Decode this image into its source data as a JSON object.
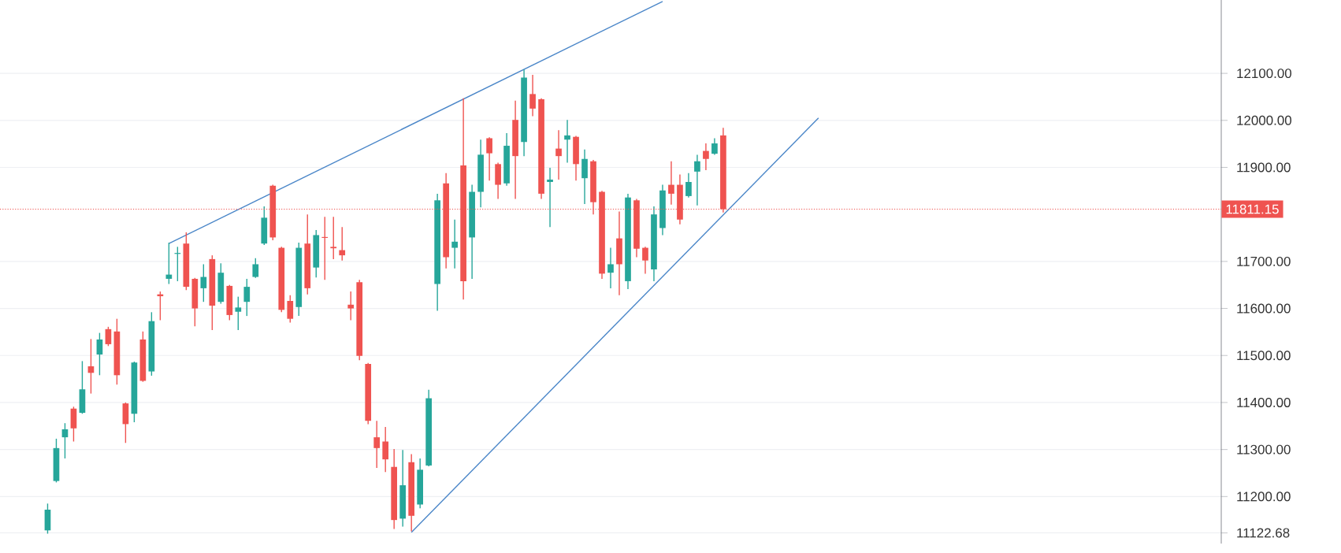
{
  "chart_data": {
    "type": "candlestick",
    "categories": [
      null,
      null,
      null,
      null,
      null,
      null,
      null,
      null,
      null,
      null,
      null,
      null,
      null,
      null,
      null,
      null,
      null,
      null,
      null,
      null,
      null,
      null,
      null,
      null,
      null,
      null,
      null,
      null,
      null,
      null,
      null,
      null,
      null,
      null,
      null,
      null,
      null,
      null,
      null,
      null,
      null,
      null,
      null,
      null,
      null,
      null,
      null,
      null,
      null,
      null,
      null,
      null,
      null,
      null,
      null,
      null,
      null,
      null,
      null,
      null,
      null,
      null,
      null,
      null,
      null,
      null,
      null,
      null,
      null,
      null,
      null,
      null,
      null,
      null,
      null,
      null,
      null,
      null,
      null,
      null,
      null,
      null,
      null,
      null,
      null,
      null,
      null,
      null,
      null,
      null,
      null,
      null,
      null,
      null,
      null,
      null,
      null,
      null,
      null,
      null,
      null,
      null,
      null,
      null,
      null,
      null,
      null,
      null,
      null,
      null,
      null,
      null,
      null,
      null,
      null,
      null,
      null,
      null,
      null,
      null,
      null,
      null,
      null,
      null,
      null,
      null,
      null,
      null,
      null,
      null,
      null,
      null,
      null,
      null,
      null,
      null,
      null,
      null,
      null,
      null,
      null
    ],
    "ohlc": [
      null,
      null,
      null,
      null,
      null,
      [
        11128,
        11185,
        11121,
        11172
      ],
      [
        11233,
        11323,
        11230,
        11303
      ],
      [
        11326,
        11356,
        11281,
        11343
      ],
      [
        11387,
        11391,
        11317,
        11345
      ],
      [
        11378,
        11488,
        11376,
        11428
      ],
      [
        11477,
        11535,
        11419,
        11463
      ],
      [
        11502,
        11548,
        11458,
        11534
      ],
      [
        11556,
        11561,
        11520,
        11524
      ],
      [
        11551,
        11578,
        11438,
        11458
      ],
      [
        11398,
        11400,
        11314,
        11354
      ],
      [
        11376,
        11487,
        11358,
        11485
      ],
      [
        11534,
        11551,
        11444,
        11446
      ],
      [
        11466,
        11592,
        11457,
        11573
      ],
      [
        11630,
        11636,
        11575,
        11626
      ],
      [
        11663,
        11740,
        11652,
        11672
      ],
      [
        11716,
        11731,
        11658,
        11718
      ],
      [
        11738,
        11762,
        11639,
        11646
      ],
      [
        11663,
        11665,
        11562,
        11600
      ],
      [
        11643,
        11694,
        11614,
        11667
      ],
      [
        11705,
        11713,
        11554,
        11606
      ],
      [
        11614,
        11696,
        11610,
        11676
      ],
      [
        11648,
        11650,
        11575,
        11586
      ],
      [
        11593,
        11625,
        11554,
        11602
      ],
      [
        11614,
        11663,
        11584,
        11646
      ],
      [
        11667,
        11707,
        11665,
        11694
      ],
      [
        11738,
        11817,
        11735,
        11793
      ],
      [
        11861,
        11863,
        11745,
        11751
      ],
      [
        11729,
        11731,
        11592,
        11597
      ],
      [
        11616,
        11628,
        11570,
        11578
      ],
      [
        11603,
        11740,
        11584,
        11729
      ],
      [
        11738,
        11800,
        11630,
        11643
      ],
      [
        11687,
        11767,
        11666,
        11756
      ],
      [
        11752,
        11795,
        11661,
        11750
      ],
      [
        11731,
        11795,
        11705,
        11728
      ],
      [
        11724,
        11773,
        11702,
        11713
      ],
      [
        11608,
        11636,
        11575,
        11600
      ],
      [
        11656,
        11661,
        11490,
        11499
      ],
      [
        11482,
        11484,
        11354,
        11361
      ],
      [
        11326,
        11361,
        11261,
        11303
      ],
      [
        11317,
        11348,
        11252,
        11279
      ],
      [
        11263,
        11301,
        11131,
        11150
      ],
      [
        11153,
        11299,
        11136,
        11224
      ],
      [
        11273,
        11290,
        11126,
        11159
      ],
      [
        11183,
        11281,
        11175,
        11257
      ],
      [
        11266,
        11427,
        11264,
        11409
      ],
      [
        11652,
        11844,
        11595,
        11830
      ],
      [
        11866,
        11888,
        11685,
        11709
      ],
      [
        11729,
        11789,
        11685,
        11742
      ],
      [
        11904,
        12047,
        11619,
        11658
      ],
      [
        11751,
        11863,
        11663,
        11848
      ],
      [
        11848,
        11959,
        11815,
        11927
      ],
      [
        11962,
        11964,
        11872,
        11930
      ],
      [
        11907,
        11910,
        11833,
        11863
      ],
      [
        11866,
        11973,
        11861,
        11946
      ],
      [
        12001,
        12042,
        11833,
        11924
      ],
      [
        11954,
        12108,
        11924,
        12091
      ],
      [
        12056,
        12097,
        12009,
        12025
      ],
      [
        12045,
        12047,
        11833,
        11844
      ],
      [
        11869,
        11899,
        11773,
        11874
      ],
      [
        11940,
        11979,
        11874,
        11924
      ],
      [
        11959,
        12001,
        11910,
        11968
      ],
      [
        11965,
        11967,
        11872,
        11907
      ],
      [
        11877,
        11938,
        11822,
        11918
      ],
      [
        11913,
        11916,
        11800,
        11826
      ],
      [
        11848,
        11850,
        11663,
        11674
      ],
      [
        11676,
        11729,
        11643,
        11694
      ],
      [
        11749,
        11806,
        11628,
        11694
      ],
      [
        11658,
        11844,
        11641,
        11836
      ],
      [
        11830,
        11833,
        11709,
        11727
      ],
      [
        11729,
        11731,
        11674,
        11702
      ],
      [
        11683,
        11817,
        11658,
        11800
      ],
      [
        11771,
        11863,
        11756,
        11851
      ],
      [
        11863,
        11913,
        11821,
        11844
      ],
      [
        11863,
        11885,
        11779,
        11789
      ],
      [
        11839,
        11888,
        11836,
        11869
      ],
      [
        11891,
        11927,
        11819,
        11913
      ],
      [
        11935,
        11951,
        11894,
        11918
      ],
      [
        11929,
        11962,
        11927,
        11951
      ],
      [
        11968,
        11984,
        11804,
        11811.15
      ],
      null,
      null,
      null,
      null,
      null,
      null,
      null,
      null,
      null,
      null,
      null,
      null,
      null,
      null,
      null,
      null,
      null,
      null,
      null,
      null,
      null,
      null,
      null,
      null,
      null,
      null,
      null,
      null,
      null,
      null,
      null,
      null,
      null,
      null,
      null,
      null,
      null,
      null,
      null,
      null,
      null,
      null,
      null,
      null,
      null,
      null,
      null,
      null,
      null,
      null,
      null,
      null,
      null,
      null,
      null,
      null,
      null
    ],
    "colors": [
      null,
      null,
      null,
      null,
      null,
      "#26a69a",
      "#26a69a",
      "#26a69a",
      "#ef5350",
      "#26a69a",
      "#ef5350",
      "#26a69a",
      "#ef5350",
      "#ef5350",
      "#ef5350",
      "#26a69a",
      "#ef5350",
      "#26a69a",
      "#ef5350",
      "#26a69a",
      "#26a69a",
      "#ef5350",
      "#ef5350",
      "#26a69a",
      "#ef5350",
      "#26a69a",
      "#ef5350",
      "#26a69a",
      "#26a69a",
      "#26a69a",
      "#26a69a",
      "#ef5350",
      "#ef5350",
      "#ef5350",
      "#26a69a",
      "#ef5350",
      "#26a69a",
      "#ef5350",
      "#ef5350",
      "#ef5350",
      "#ef5350",
      "#ef5350",
      "#ef5350",
      "#ef5350",
      "#ef5350",
      "#ef5350",
      "#26a69a",
      "#ef5350",
      "#26a69a",
      "#26a69a",
      "#26a69a",
      "#ef5350",
      "#26a69a",
      "#ef5350",
      "#26a69a",
      "#26a69a",
      "#ef5350",
      "#ef5350",
      "#26a69a",
      "#ef5350",
      "#26a69a",
      "#ef5350",
      "#ef5350",
      "#26a69a",
      "#ef5350",
      "#26a69a",
      "#ef5350",
      "#26a69a",
      "#ef5350",
      "#ef5350",
      "#26a69a",
      "#ef5350",
      "#26a69a",
      "#ef5350",
      "#ef5350",
      "#26a69a",
      "#26a69a",
      "#ef5350",
      "#ef5350",
      "#26a69a",
      "#26a69a",
      "#ef5350",
      "#26a69a",
      "#ef5350",
      null,
      null,
      null,
      null,
      null,
      null,
      null,
      null,
      null,
      null,
      null,
      null,
      null,
      null,
      null,
      null,
      null,
      null,
      null,
      null,
      null,
      null,
      null,
      null,
      null,
      null,
      null,
      null,
      null,
      null,
      null,
      null,
      null,
      null,
      null,
      null,
      null,
      null,
      null,
      null,
      null,
      null,
      null,
      null,
      null,
      null,
      null,
      null,
      null,
      null,
      null,
      null,
      null,
      null,
      null,
      null,
      null
    ],
    "series": [
      {
        "type": "line",
        "color": "#4a86c8",
        "values": [
          null,
          null,
          null,
          null,
          null,
          null,
          null,
          null,
          null,
          null,
          null,
          null,
          null,
          null,
          null,
          null,
          null,
          null,
          null,
          11738,
          null,
          null,
          null,
          null,
          null,
          null,
          null,
          null,
          null,
          null,
          null,
          null,
          null,
          null,
          null,
          null,
          null,
          null,
          null,
          null,
          null,
          null,
          null,
          null,
          null,
          null,
          null,
          null,
          null,
          null,
          null,
          null,
          null,
          null,
          null,
          null,
          null,
          null,
          null,
          null,
          null,
          null,
          null,
          null,
          null,
          null,
          null,
          null,
          null,
          null,
          null,
          null,
          null,
          null,
          null,
          null,
          12253,
          null,
          null,
          null,
          null,
          null,
          null,
          null,
          null,
          null,
          null,
          null,
          null,
          null,
          null,
          null,
          null,
          null,
          null,
          null,
          null,
          null,
          null,
          null,
          null,
          null,
          null,
          null,
          null,
          null,
          null,
          null,
          null,
          null,
          null,
          null,
          null,
          null,
          null,
          null,
          null,
          null,
          null,
          null,
          null,
          null,
          null,
          null,
          null,
          null,
          null,
          null,
          null,
          null,
          null,
          null,
          null,
          null,
          null,
          null,
          null,
          null,
          null,
          null,
          null
        ]
      },
      {
        "type": "line",
        "color": "#4a86c8",
        "values": [
          null,
          null,
          null,
          null,
          null,
          null,
          null,
          null,
          null,
          null,
          null,
          null,
          null,
          null,
          null,
          null,
          null,
          null,
          null,
          null,
          null,
          null,
          null,
          null,
          null,
          null,
          null,
          null,
          null,
          null,
          null,
          null,
          null,
          null,
          null,
          null,
          null,
          null,
          null,
          null,
          null,
          null,
          null,
          null,
          null,
          null,
          null,
          11124,
          null,
          null,
          null,
          null,
          null,
          null,
          null,
          null,
          null,
          null,
          null,
          null,
          null,
          null,
          null,
          null,
          null,
          null,
          null,
          null,
          null,
          null,
          null,
          null,
          null,
          null,
          null,
          null,
          null,
          null,
          null,
          null,
          null,
          null,
          null,
          null,
          null,
          null,
          null,
          null,
          null,
          null,
          null,
          null,
          null,
          null,
          12005,
          null,
          null,
          null,
          null,
          null,
          null,
          null,
          null,
          null,
          null,
          null,
          null,
          null,
          null,
          null,
          null,
          null,
          null,
          null,
          null,
          null,
          null,
          null,
          null,
          null,
          null,
          null,
          null,
          null,
          null,
          null,
          null,
          null,
          null,
          null,
          null,
          null,
          null,
          null,
          null,
          null,
          null,
          null,
          null,
          null,
          null
        ]
      }
    ],
    "ylim": [
      11100,
      12256
    ],
    "yticks": [
      {
        "value": 11122.68,
        "label": "11122.68"
      },
      {
        "value": 11200,
        "label": "11200.00"
      },
      {
        "value": 11300,
        "label": "11300.00"
      },
      {
        "value": 11400,
        "label": "11400.00"
      },
      {
        "value": 11500,
        "label": "11500.00"
      },
      {
        "value": 11600,
        "label": "11600.00"
      },
      {
        "value": 11700,
        "label": "11700.00"
      },
      {
        "value": 11900,
        "label": "11900.00"
      },
      {
        "value": 12000,
        "label": "12000.00"
      },
      {
        "value": 12100,
        "label": "12100.00"
      }
    ],
    "ref_lines": [
      {
        "axis": "y",
        "value": 11811.15,
        "label": "11811.15",
        "color": "#ef5350",
        "line_style": "dotted"
      }
    ],
    "grid": "y",
    "tick_labels": "y"
  }
}
